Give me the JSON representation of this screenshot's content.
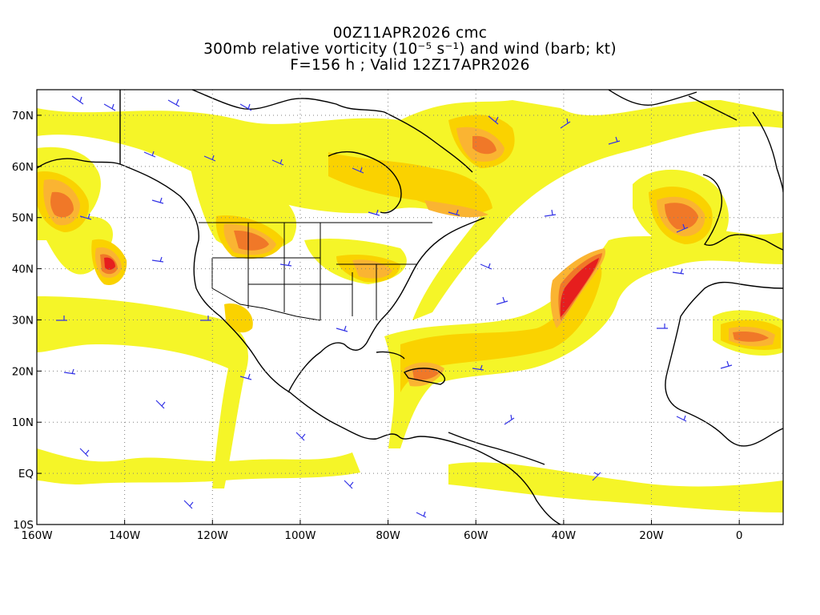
{
  "title": {
    "line1": "00Z11APR2026 cmc",
    "line2": "300mb relative vorticity (10⁻⁵ s⁻¹) and wind (barb; kt)",
    "line3": "F=156 h ; Valid 12Z17APR2026"
  },
  "map": {
    "lon_range": [
      -160,
      10
    ],
    "lat_range": [
      -10,
      75
    ],
    "lon_ticks": [
      {
        "value": -160,
        "label": "160W"
      },
      {
        "value": -140,
        "label": "140W"
      },
      {
        "value": -120,
        "label": "120W"
      },
      {
        "value": -100,
        "label": "100W"
      },
      {
        "value": -80,
        "label": "80W"
      },
      {
        "value": -60,
        "label": "60W"
      },
      {
        "value": -40,
        "label": "40W"
      },
      {
        "value": -20,
        "label": "20W"
      },
      {
        "value": 0,
        "label": "0"
      }
    ],
    "lat_ticks": [
      {
        "value": 70,
        "label": "70N"
      },
      {
        "value": 60,
        "label": "60N"
      },
      {
        "value": 50,
        "label": "50N"
      },
      {
        "value": 40,
        "label": "40N"
      },
      {
        "value": 30,
        "label": "30N"
      },
      {
        "value": 20,
        "label": "20N"
      },
      {
        "value": 10,
        "label": "10N"
      },
      {
        "value": 0,
        "label": "EQ"
      },
      {
        "value": -10,
        "label": "10S"
      }
    ],
    "gridlines": true,
    "colors": {
      "level1": "#f5f528",
      "level2": "#fad200",
      "level3": "#fab432",
      "level4": "#f07828",
      "level5": "#e61e1e",
      "coast": "#000000",
      "barb": "#3232e6",
      "grid": "#808080"
    }
  }
}
